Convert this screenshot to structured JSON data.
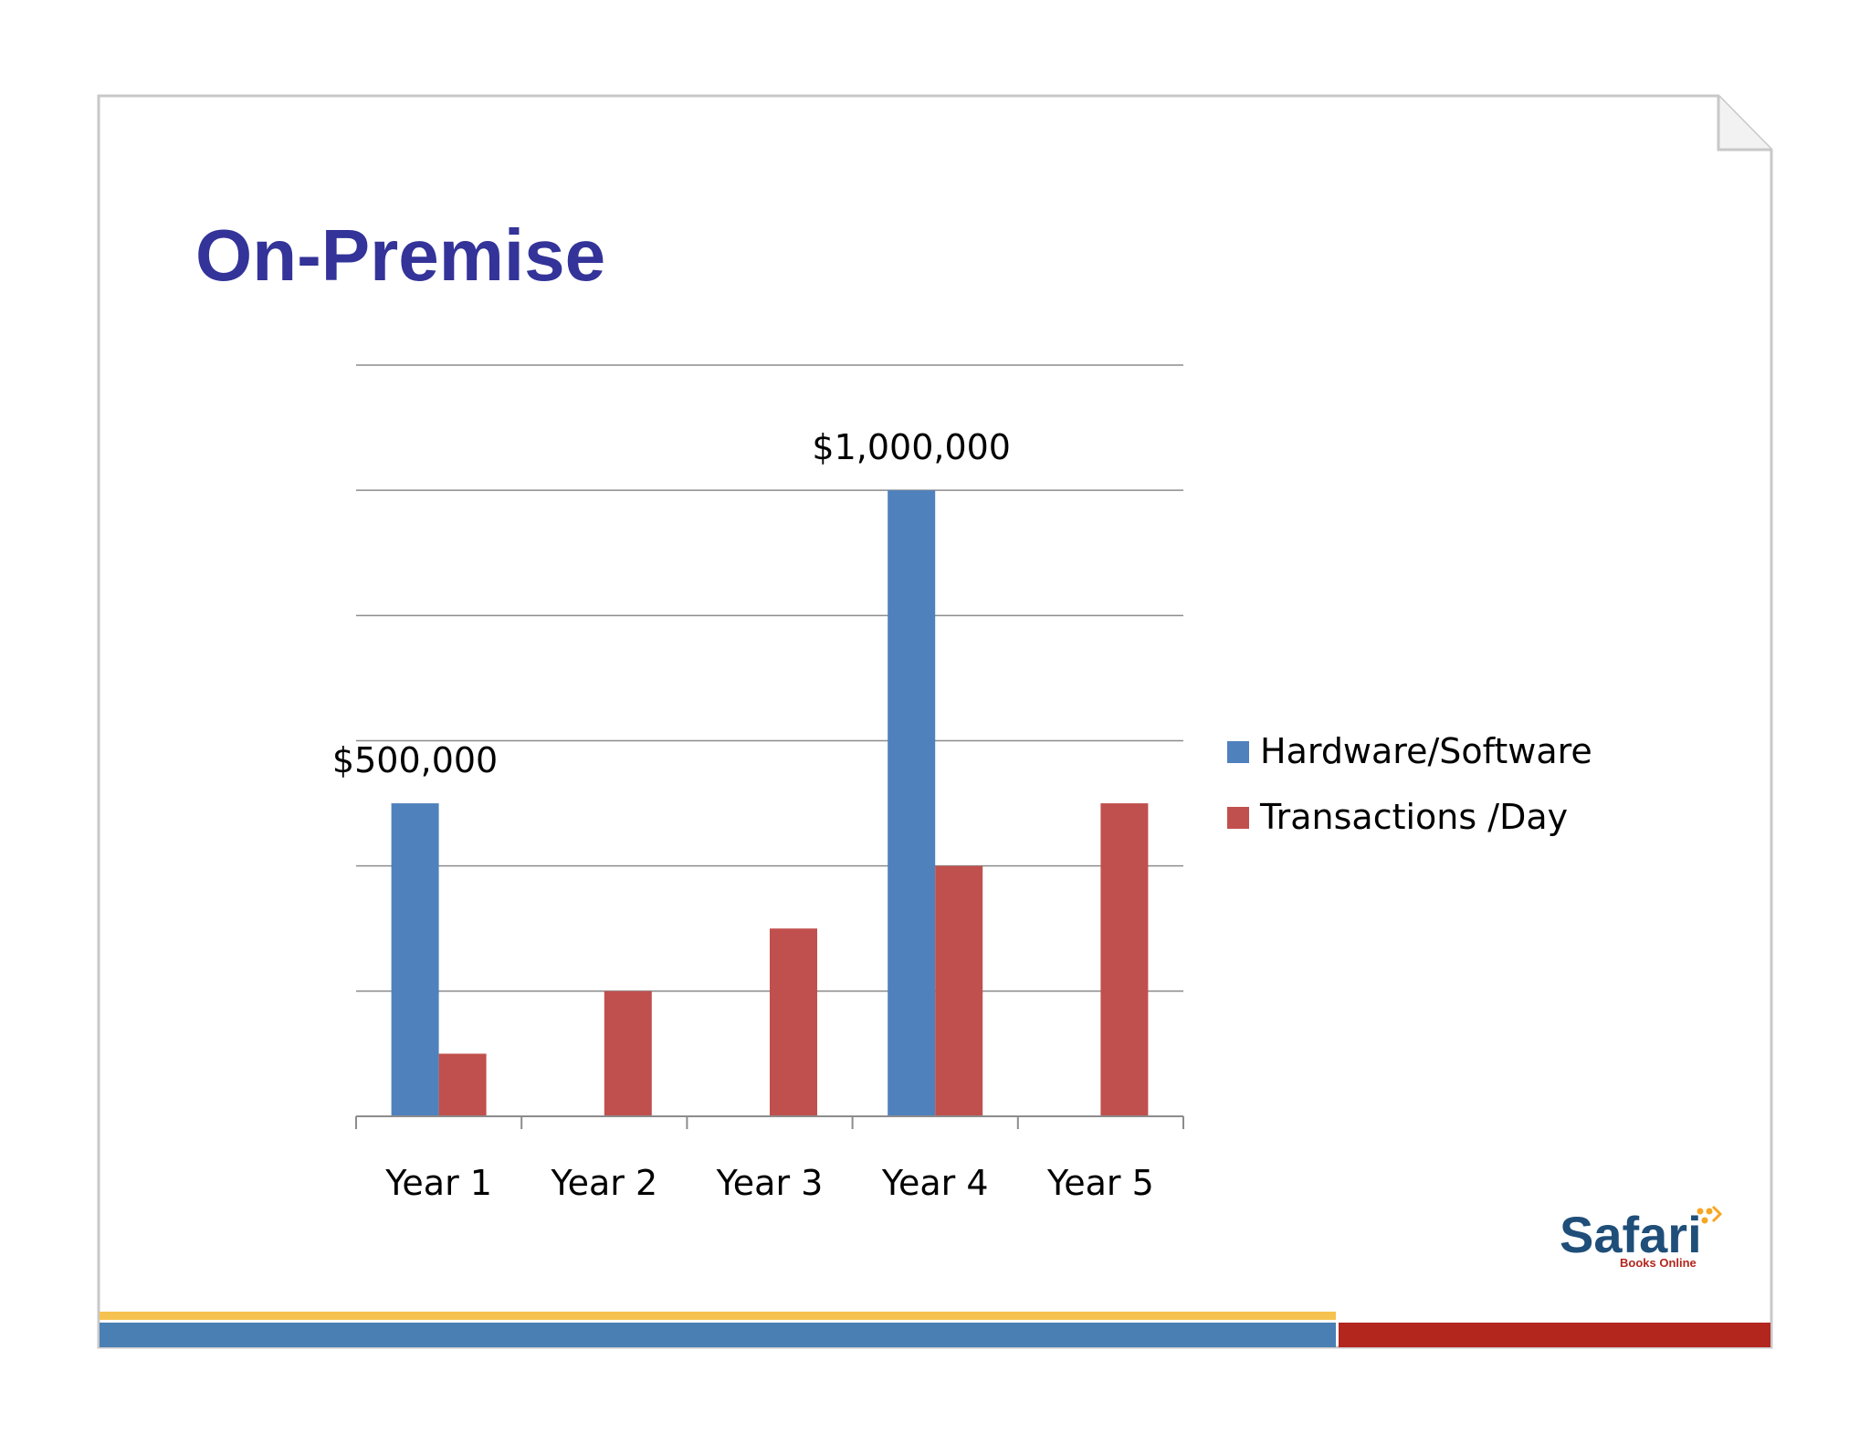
{
  "slide": {
    "title": "On-Premise",
    "title_color": "#333399"
  },
  "logo": {
    "name": "Safari",
    "tagline": "Books Online"
  },
  "colors": {
    "hardware_software": "#4f81bd",
    "transactions_day": "#c0504d",
    "bar_yellow": "#f6c24f",
    "bar_blue": "#4a7fb3",
    "bar_red": "#b3261e"
  },
  "chart_data": {
    "type": "bar",
    "categories": [
      "Year 1",
      "Year 2",
      "Year 3",
      "Year 4",
      "Year 5"
    ],
    "series": [
      {
        "name": "Hardware/Software",
        "values": [
          500000,
          0,
          0,
          1000000,
          0
        ]
      },
      {
        "name": "Transactions /Day",
        "values": [
          100000,
          200000,
          300000,
          400000,
          500000
        ]
      }
    ],
    "data_labels": [
      {
        "series": 0,
        "category": 0,
        "text": "$500,000"
      },
      {
        "series": 0,
        "category": 3,
        "text": "$1,000,000"
      }
    ],
    "ylim": [
      0,
      1200000
    ],
    "ytick_step": 200000,
    "y_axis_labels_shown": false,
    "grid": true,
    "legend": "right"
  }
}
